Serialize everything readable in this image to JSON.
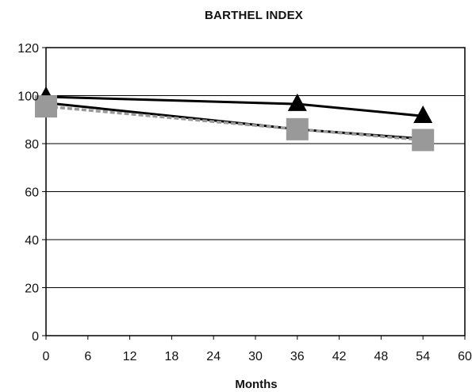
{
  "chart_data": {
    "type": "line",
    "title": "BARTHEL INDEX",
    "xlabel": "Months",
    "ylabel": "",
    "xlim": [
      0,
      60
    ],
    "ylim": [
      0,
      120
    ],
    "xticks": [
      0,
      6,
      12,
      18,
      24,
      30,
      36,
      42,
      48,
      54,
      60
    ],
    "yticks": [
      0,
      20,
      40,
      60,
      80,
      100,
      120
    ],
    "grid": "horizontal",
    "legend": "none",
    "series": [
      {
        "marker": "triangle",
        "color": "#000000",
        "line_style": "solid",
        "x": [
          0,
          36,
          54
        ],
        "y": [
          99.5,
          96.5,
          91.5
        ]
      },
      {
        "marker": "none",
        "color": "#000000",
        "line_style": "solid",
        "x": [
          0,
          36,
          54
        ],
        "y": [
          97,
          86,
          82
        ]
      },
      {
        "marker": "square",
        "color": "#999999",
        "line_style": "dashed",
        "x": [
          0,
          36,
          54
        ],
        "y": [
          95.5,
          86,
          81.5
        ]
      }
    ]
  }
}
